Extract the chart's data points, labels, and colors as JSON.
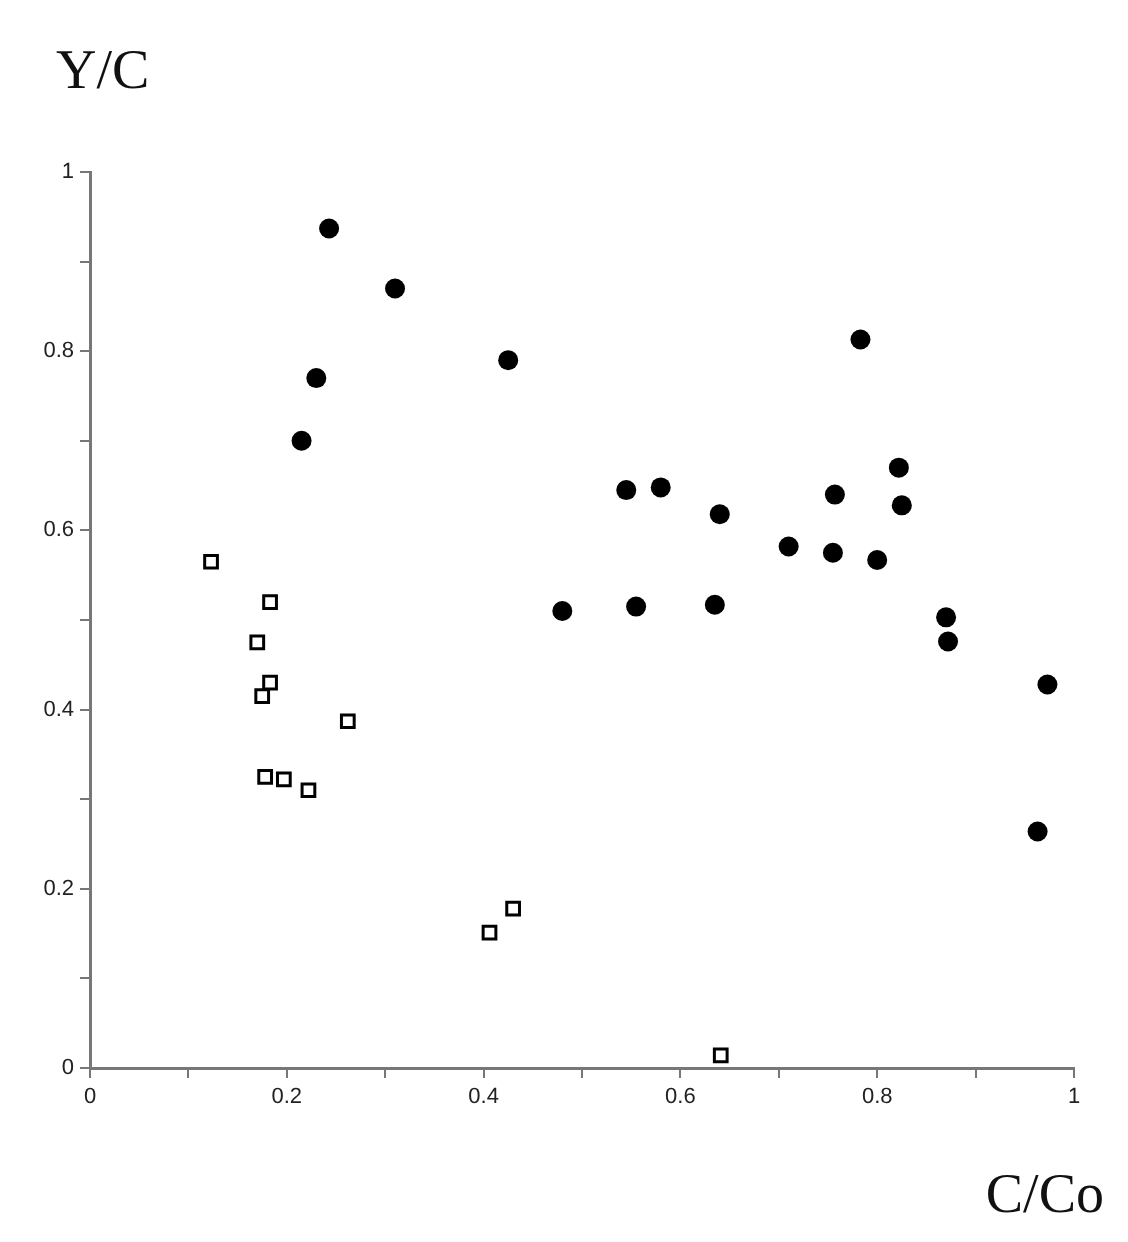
{
  "chart_data": {
    "type": "scatter",
    "xlabel": "C/Co",
    "ylabel": "Y/C",
    "xlim": [
      0,
      1
    ],
    "ylim": [
      0,
      1
    ],
    "xticks": [
      0,
      {
        "value": 0.1,
        "label": null
      },
      0.2,
      {
        "value": 0.3,
        "label": null
      },
      0.4,
      {
        "value": 0.5,
        "label": null
      },
      0.6,
      {
        "value": 0.7,
        "label": null
      },
      0.8,
      {
        "value": 0.9,
        "label": null
      },
      1
    ],
    "yticks": [
      0,
      {
        "value": 0.1,
        "label": null
      },
      0.2,
      {
        "value": 0.3,
        "label": null
      },
      0.4,
      {
        "value": 0.5,
        "label": null
      },
      0.6,
      {
        "value": 0.7,
        "label": null
      },
      0.8,
      {
        "value": 0.9,
        "label": null
      },
      1
    ],
    "grid": false,
    "legend": false,
    "series": [
      {
        "color": "#000000",
        "marker": "circle",
        "x": [
          0.243,
          0.31,
          0.23,
          0.215,
          0.425,
          0.48,
          0.545,
          0.555,
          0.58,
          0.635,
          0.64,
          0.71,
          0.755,
          0.757,
          0.783,
          0.8,
          0.822,
          0.825,
          0.87,
          0.872,
          0.963,
          0.973
        ],
        "values": [
          0.937,
          0.87,
          0.77,
          0.7,
          0.79,
          0.51,
          0.645,
          0.515,
          0.648,
          0.517,
          0.618,
          0.582,
          0.575,
          0.64,
          0.813,
          0.567,
          0.67,
          0.628,
          0.503,
          0.476,
          0.264,
          0.428
        ]
      },
      {
        "color": "#000000",
        "marker": "square",
        "x": [
          0.123,
          0.183,
          0.17,
          0.183,
          0.175,
          0.262,
          0.178,
          0.197,
          0.222,
          0.406,
          0.43,
          0.641
        ],
        "values": [
          0.565,
          0.52,
          0.475,
          0.43,
          0.415,
          0.387,
          0.325,
          0.322,
          0.31,
          0.151,
          0.178,
          0.014
        ]
      }
    ]
  }
}
